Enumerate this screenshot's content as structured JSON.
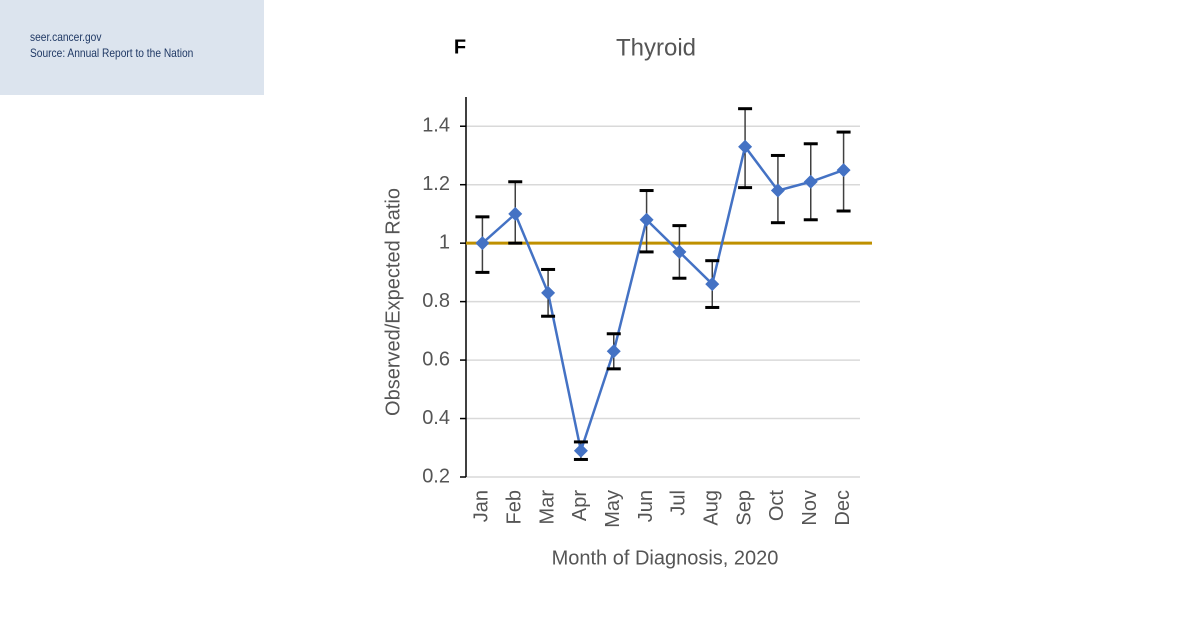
{
  "header": {
    "site": "seer.cancer.gov",
    "source": "Source: Annual Report to the Nation"
  },
  "chart_data": {
    "type": "line",
    "panel_label": "F",
    "title": "Thyroid",
    "x_label": "Month of Diagnosis, 2020",
    "y_label": "Observed/Expected Ratio",
    "categories": [
      "Jan",
      "Feb",
      "Mar",
      "Apr",
      "May",
      "Jun",
      "Jul",
      "Aug",
      "Sep",
      "Oct",
      "Nov",
      "Dec"
    ],
    "series": [
      {
        "color": "#4472c4",
        "values": [
          1.0,
          1.1,
          0.83,
          0.29,
          0.63,
          1.08,
          0.97,
          0.86,
          1.33,
          1.18,
          1.21,
          1.25
        ],
        "lower": [
          0.9,
          1.0,
          0.75,
          0.26,
          0.57,
          0.97,
          0.88,
          0.78,
          1.19,
          1.07,
          1.08,
          1.11
        ],
        "upper": [
          1.09,
          1.21,
          0.91,
          0.32,
          0.69,
          1.18,
          1.06,
          0.94,
          1.46,
          1.3,
          1.34,
          1.38
        ]
      }
    ],
    "reference_line": {
      "value": 1,
      "color": "#bf9000"
    },
    "ylim": [
      0.2,
      1.5
    ],
    "yticks": [
      0.2,
      0.4,
      0.6,
      0.8,
      1,
      1.2,
      1.4
    ],
    "grid": true
  }
}
